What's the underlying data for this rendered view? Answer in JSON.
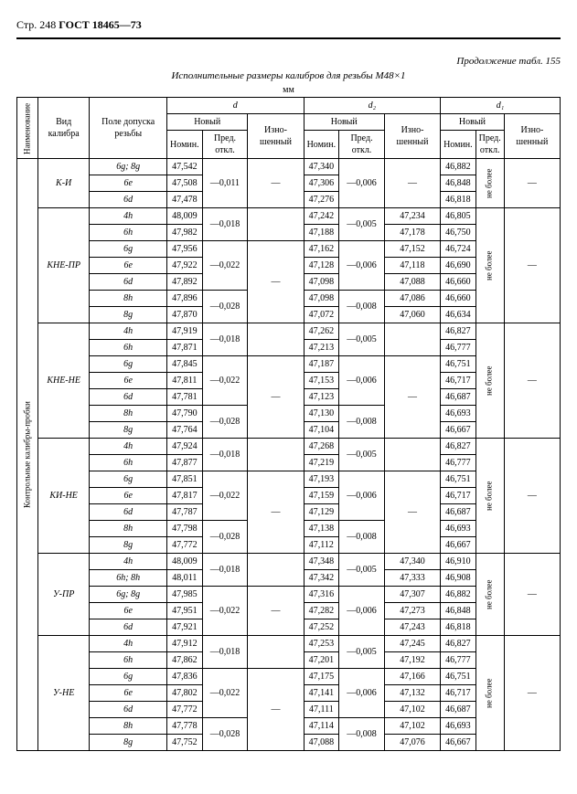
{
  "header": {
    "page": "Стр. 248",
    "gost": "ГОСТ 18465—73"
  },
  "continuation": "Продолжение табл. 155",
  "title": "Исполнительные размеры калибров для резьбы М48×1",
  "unit": "мм",
  "headers": {
    "naimen": "Наименование",
    "vid": "Вид калибра",
    "pole": "Поле допуска резьбы",
    "d": "d",
    "d2": "d₂",
    "d1": "d₁",
    "novy": "Новый",
    "nomin": "Номин.",
    "pred": "Пред. откл.",
    "izno": "Изно-шенный"
  },
  "side_label": "Контрольные калибры-пробки",
  "ne_bolee": "не более",
  "groups": [
    {
      "vid": "К-И",
      "rows": [
        {
          "pole": "6g; 8g",
          "d_nom": "47,542",
          "d_pred": "—0,011",
          "d_izn": "—",
          "d2_nom": "47,340",
          "d2_pred": "—0,006",
          "d2_izn": "—",
          "d1_nom": "46,882",
          "d1_pred": "не более",
          "d1_izn": "—"
        },
        {
          "pole": "6e",
          "d_nom": "47,508",
          "d_pred": "",
          "d_izn": "",
          "d2_nom": "47,306",
          "d2_pred": "",
          "d2_izn": "",
          "d1_nom": "46,848",
          "d1_pred": "",
          "d1_izn": ""
        },
        {
          "pole": "6d",
          "d_nom": "47,478",
          "d_pred": "",
          "d_izn": "",
          "d2_nom": "47,276",
          "d2_pred": "",
          "d2_izn": "",
          "d1_nom": "46,818",
          "d1_pred": "",
          "d1_izn": ""
        }
      ]
    },
    {
      "vid": "КНЕ-ПР",
      "rows": [
        {
          "pole": "4h",
          "d_nom": "48,009",
          "d_pred": "—0,018",
          "d_izn": "",
          "d2_nom": "47,242",
          "d2_pred": "—0,005",
          "d2_izn": "47,234",
          "d1_nom": "46,805",
          "d1_pred": "",
          "d1_izn": ""
        },
        {
          "pole": "6h",
          "d_nom": "47,982",
          "d_pred": "",
          "d_izn": "",
          "d2_nom": "47,188",
          "d2_pred": "",
          "d2_izn": "47,178",
          "d1_nom": "46,750",
          "d1_pred": "",
          "d1_izn": ""
        },
        {
          "pole": "6g",
          "d_nom": "47,956",
          "d_pred": "—0,022",
          "d_izn": "—",
          "d2_nom": "47,162",
          "d2_pred": "—0,006",
          "d2_izn": "47,152",
          "d1_nom": "46,724",
          "d1_pred": "не более",
          "d1_izn": "—"
        },
        {
          "pole": "6e",
          "d_nom": "47,922",
          "d_pred": "",
          "d_izn": "",
          "d2_nom": "47,128",
          "d2_pred": "",
          "d2_izn": "47,118",
          "d1_nom": "46,690",
          "d1_pred": "",
          "d1_izn": ""
        },
        {
          "pole": "6d",
          "d_nom": "47,892",
          "d_pred": "",
          "d_izn": "",
          "d2_nom": "47,098",
          "d2_pred": "",
          "d2_izn": "47,088",
          "d1_nom": "46,660",
          "d1_pred": "",
          "d1_izn": ""
        },
        {
          "pole": "8h",
          "d_nom": "47,896",
          "d_pred": "—0,028",
          "d_izn": "",
          "d2_nom": "47,098",
          "d2_pred": "—0,008",
          "d2_izn": "47,086",
          "d1_nom": "46,660",
          "d1_pred": "",
          "d1_izn": ""
        },
        {
          "pole": "8g",
          "d_nom": "47,870",
          "d_pred": "",
          "d_izn": "",
          "d2_nom": "47,072",
          "d2_pred": "",
          "d2_izn": "47,060",
          "d1_nom": "46,634",
          "d1_pred": "",
          "d1_izn": ""
        }
      ]
    },
    {
      "vid": "КНЕ-НЕ",
      "rows": [
        {
          "pole": "4h",
          "d_nom": "47,919",
          "d_pred": "—0,018",
          "d_izn": "",
          "d2_nom": "47,262",
          "d2_pred": "—0,005",
          "d2_izn": "",
          "d1_nom": "46,827",
          "d1_pred": "",
          "d1_izn": ""
        },
        {
          "pole": "6h",
          "d_nom": "47,871",
          "d_pred": "",
          "d_izn": "",
          "d2_nom": "47,213",
          "d2_pred": "",
          "d2_izn": "",
          "d1_nom": "46,777",
          "d1_pred": "",
          "d1_izn": ""
        },
        {
          "pole": "6g",
          "d_nom": "47,845",
          "d_pred": "—0,022",
          "d_izn": "—",
          "d2_nom": "47,187",
          "d2_pred": "—0,006",
          "d2_izn": "—",
          "d1_nom": "46,751",
          "d1_pred": "не более",
          "d1_izn": "—"
        },
        {
          "pole": "6e",
          "d_nom": "47,811",
          "d_pred": "",
          "d_izn": "",
          "d2_nom": "47,153",
          "d2_pred": "",
          "d2_izn": "",
          "d1_nom": "46,717",
          "d1_pred": "",
          "d1_izn": ""
        },
        {
          "pole": "6d",
          "d_nom": "47,781",
          "d_pred": "",
          "d_izn": "",
          "d2_nom": "47,123",
          "d2_pred": "",
          "d2_izn": "",
          "d1_nom": "46,687",
          "d1_pred": "",
          "d1_izn": ""
        },
        {
          "pole": "8h",
          "d_nom": "47,790",
          "d_pred": "—0,028",
          "d_izn": "",
          "d2_nom": "47,130",
          "d2_pred": "—0,008",
          "d2_izn": "",
          "d1_nom": "46,693",
          "d1_pred": "",
          "d1_izn": ""
        },
        {
          "pole": "8g",
          "d_nom": "47,764",
          "d_pred": "",
          "d_izn": "",
          "d2_nom": "47,104",
          "d2_pred": "",
          "d2_izn": "",
          "d1_nom": "46,667",
          "d1_pred": "",
          "d1_izn": ""
        }
      ]
    },
    {
      "vid": "КИ-НЕ",
      "rows": [
        {
          "pole": "4h",
          "d_nom": "47,924",
          "d_pred": "—0,018",
          "d_izn": "",
          "d2_nom": "47,268",
          "d2_pred": "—0,005",
          "d2_izn": "",
          "d1_nom": "46,827",
          "d1_pred": "",
          "d1_izn": ""
        },
        {
          "pole": "6h",
          "d_nom": "47,877",
          "d_pred": "",
          "d_izn": "",
          "d2_nom": "47,219",
          "d2_pred": "",
          "d2_izn": "",
          "d1_nom": "46,777",
          "d1_pred": "",
          "d1_izn": ""
        },
        {
          "pole": "6g",
          "d_nom": "47,851",
          "d_pred": "—0,022",
          "d_izn": "—",
          "d2_nom": "47,193",
          "d2_pred": "—0,006",
          "d2_izn": "—",
          "d1_nom": "46,751",
          "d1_pred": "не более",
          "d1_izn": "—"
        },
        {
          "pole": "6e",
          "d_nom": "47,817",
          "d_pred": "",
          "d_izn": "",
          "d2_nom": "47,159",
          "d2_pred": "",
          "d2_izn": "",
          "d1_nom": "46,717",
          "d1_pred": "",
          "d1_izn": ""
        },
        {
          "pole": "6d",
          "d_nom": "47,787",
          "d_pred": "",
          "d_izn": "",
          "d2_nom": "47,129",
          "d2_pred": "",
          "d2_izn": "",
          "d1_nom": "46,687",
          "d1_pred": "",
          "d1_izn": ""
        },
        {
          "pole": "8h",
          "d_nom": "47,798",
          "d_pred": "—0,028",
          "d_izn": "",
          "d2_nom": "47,138",
          "d2_pred": "—0,008",
          "d2_izn": "",
          "d1_nom": "46,693",
          "d1_pred": "",
          "d1_izn": ""
        },
        {
          "pole": "8g",
          "d_nom": "47,772",
          "d_pred": "",
          "d_izn": "",
          "d2_nom": "47,112",
          "d2_pred": "",
          "d2_izn": "",
          "d1_nom": "46,667",
          "d1_pred": "",
          "d1_izn": ""
        }
      ]
    },
    {
      "vid": "У-ПР",
      "rows": [
        {
          "pole": "4h",
          "d_nom": "48,009",
          "d_pred": "—0,018",
          "d_izn": "",
          "d2_nom": "47,348",
          "d2_pred": "—0,005",
          "d2_izn": "47,340",
          "d1_nom": "46,910",
          "d1_pred": "",
          "d1_izn": ""
        },
        {
          "pole": "6h; 8h",
          "d_nom": "48,011",
          "d_pred": "",
          "d_izn": "",
          "d2_nom": "47,342",
          "d2_pred": "",
          "d2_izn": "47,333",
          "d1_nom": "46,908",
          "d1_pred": "",
          "d1_izn": ""
        },
        {
          "pole": "6g; 8g",
          "d_nom": "47,985",
          "d_pred": "—0,022",
          "d_izn": "—",
          "d2_nom": "47,316",
          "d2_pred": "—0,006",
          "d2_izn": "47,307",
          "d1_nom": "46,882",
          "d1_pred": "не более",
          "d1_izn": "—"
        },
        {
          "pole": "6e",
          "d_nom": "47,951",
          "d_pred": "",
          "d_izn": "",
          "d2_nom": "47,282",
          "d2_pred": "",
          "d2_izn": "47,273",
          "d1_nom": "46,848",
          "d1_pred": "",
          "d1_izn": ""
        },
        {
          "pole": "6d",
          "d_nom": "47,921",
          "d_pred": "",
          "d_izn": "",
          "d2_nom": "47,252",
          "d2_pred": "",
          "d2_izn": "47,243",
          "d1_nom": "46,818",
          "d1_pred": "",
          "d1_izn": ""
        }
      ]
    },
    {
      "vid": "У-НЕ",
      "rows": [
        {
          "pole": "4h",
          "d_nom": "47,912",
          "d_pred": "—0,018",
          "d_izn": "",
          "d2_nom": "47,253",
          "d2_pred": "—0,005",
          "d2_izn": "47,245",
          "d1_nom": "46,827",
          "d1_pred": "",
          "d1_izn": ""
        },
        {
          "pole": "6h",
          "d_nom": "47,862",
          "d_pred": "",
          "d_izn": "",
          "d2_nom": "47,201",
          "d2_pred": "",
          "d2_izn": "47,192",
          "d1_nom": "46,777",
          "d1_pred": "",
          "d1_izn": ""
        },
        {
          "pole": "6g",
          "d_nom": "47,836",
          "d_pred": "—0,022",
          "d_izn": "—",
          "d2_nom": "47,175",
          "d2_pred": "—0,006",
          "d2_izn": "47,166",
          "d1_nom": "46,751",
          "d1_pred": "не более",
          "d1_izn": "—"
        },
        {
          "pole": "6e",
          "d_nom": "47,802",
          "d_pred": "",
          "d_izn": "",
          "d2_nom": "47,141",
          "d2_pred": "",
          "d2_izn": "47,132",
          "d1_nom": "46,717",
          "d1_pred": "",
          "d1_izn": ""
        },
        {
          "pole": "6d",
          "d_nom": "47,772",
          "d_pred": "",
          "d_izn": "",
          "d2_nom": "47,111",
          "d2_pred": "",
          "d2_izn": "47,102",
          "d1_nom": "46,687",
          "d1_pred": "",
          "d1_izn": ""
        },
        {
          "pole": "8h",
          "d_nom": "47,778",
          "d_pred": "—0,028",
          "d_izn": "",
          "d2_nom": "47,114",
          "d2_pred": "—0,008",
          "d2_izn": "47,102",
          "d1_nom": "46,693",
          "d1_pred": "",
          "d1_izn": ""
        },
        {
          "pole": "8g",
          "d_nom": "47,752",
          "d_pred": "",
          "d_izn": "",
          "d2_nom": "47,088",
          "d2_pred": "",
          "d2_izn": "47,076",
          "d1_nom": "46,667",
          "d1_pred": "",
          "d1_izn": ""
        }
      ]
    }
  ]
}
